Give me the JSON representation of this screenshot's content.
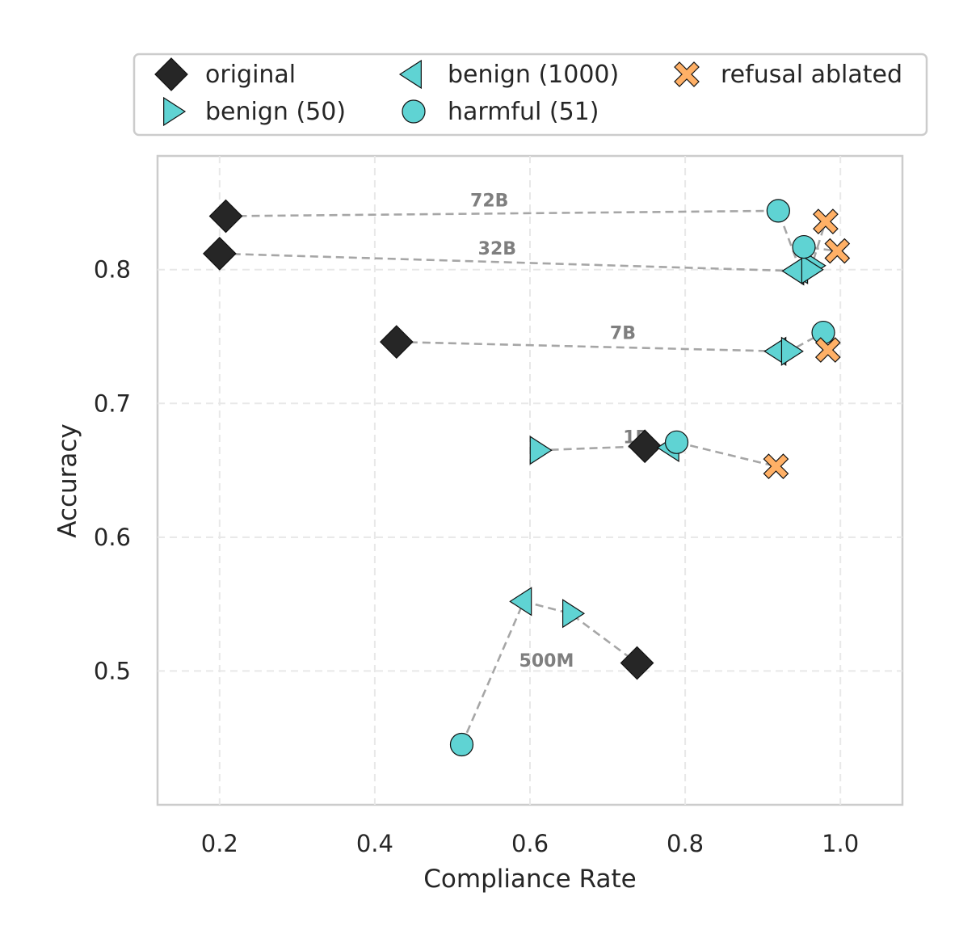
{
  "chart_data": {
    "type": "scatter",
    "xlabel": "Compliance Rate",
    "ylabel": "Accuracy",
    "xlim": [
      0.12,
      1.08
    ],
    "ylim": [
      0.4,
      0.885
    ],
    "xticks": [
      0.2,
      0.4,
      0.6,
      0.8,
      1.0
    ],
    "xtick_labels": [
      "0.2",
      "0.4",
      "0.6",
      "0.8",
      "1.0"
    ],
    "yticks": [
      0.5,
      0.6,
      0.7,
      0.8
    ],
    "ytick_labels": [
      "0.5",
      "0.6",
      "0.7",
      "0.8"
    ],
    "grid": true,
    "legend_position": "top",
    "series": [
      {
        "key": "original",
        "name": "original",
        "marker": "diamond",
        "color": "#262626"
      },
      {
        "key": "benign50",
        "name": "benign (50)",
        "marker": "triangle-right",
        "color": "#5fd3d3"
      },
      {
        "key": "benign1000",
        "name": "benign (1000)",
        "marker": "triangle-left",
        "color": "#5fd3d3"
      },
      {
        "key": "harmful51",
        "name": "harmful (51)",
        "marker": "circle",
        "color": "#5fd3d3"
      },
      {
        "key": "refusal",
        "name": "refusal ablated",
        "marker": "x-filled",
        "color": "#ffb066"
      }
    ],
    "models": [
      {
        "label": "72B",
        "points": {
          "original": [
            0.208,
            0.84
          ],
          "harmful51": [
            0.92,
            0.844
          ],
          "benign1000": [
            0.948,
            0.8
          ],
          "benign50": [
            0.963,
            0.803
          ],
          "refusal": [
            0.981,
            0.836
          ]
        },
        "path": [
          "original",
          "harmful51",
          "benign1000",
          "benign50",
          "refusal"
        ]
      },
      {
        "label": "32B",
        "points": {
          "original": [
            0.2,
            0.812
          ],
          "benign1000": [
            0.943,
            0.799
          ],
          "benign50": [
            0.96,
            0.8
          ],
          "harmful51": [
            0.953,
            0.817
          ],
          "refusal": [
            0.996,
            0.814
          ]
        },
        "path": [
          "original",
          "benign1000",
          "benign50",
          "harmful51",
          "refusal"
        ]
      },
      {
        "label": "7B",
        "points": {
          "original": [
            0.428,
            0.746
          ],
          "benign1000": [
            0.92,
            0.739
          ],
          "benign50": [
            0.934,
            0.739
          ],
          "harmful51": [
            0.978,
            0.753
          ],
          "refusal": [
            0.984,
            0.74
          ]
        },
        "path": [
          "original",
          "benign1000",
          "benign50",
          "harmful51",
          "refusal"
        ]
      },
      {
        "label": "1B",
        "points": {
          "benign50": [
            0.61,
            0.665
          ],
          "original": [
            0.748,
            0.668
          ],
          "benign1000": [
            0.782,
            0.667
          ],
          "harmful51": [
            0.789,
            0.671
          ],
          "refusal": [
            0.917,
            0.653
          ]
        },
        "path": [
          "benign50",
          "original",
          "benign1000",
          "harmful51",
          "refusal"
        ]
      },
      {
        "label": "500M",
        "points": {
          "harmful51": [
            0.512,
            0.445
          ],
          "benign1000": [
            0.592,
            0.552
          ],
          "benign50": [
            0.652,
            0.543
          ],
          "original": [
            0.738,
            0.506
          ]
        },
        "path": [
          "harmful51",
          "benign1000",
          "benign50",
          "original"
        ]
      }
    ]
  }
}
